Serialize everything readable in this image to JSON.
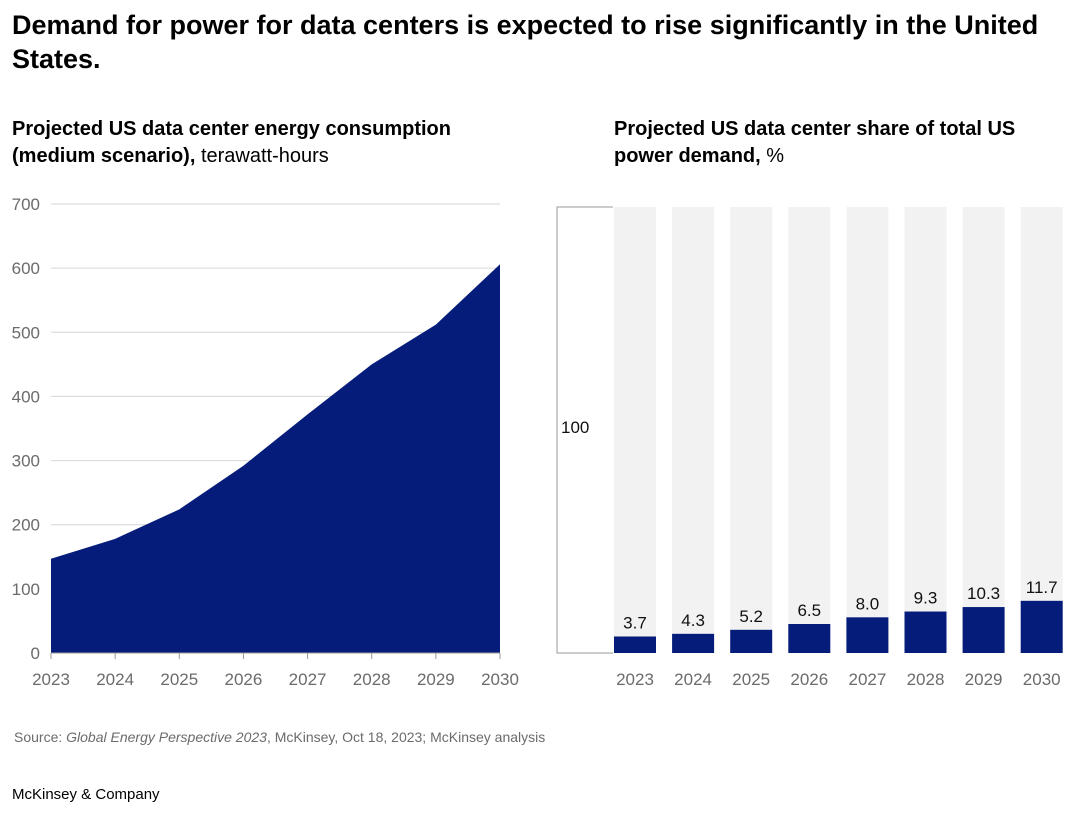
{
  "headline": "Demand for power for data centers is expected to rise significantly in the United States.",
  "chart_data": [
    {
      "type": "area",
      "title_bold": "Projected US data center energy consumption (medium scenario),",
      "title_unit": "terawatt-hours",
      "x": [
        "2023",
        "2024",
        "2025",
        "2026",
        "2027",
        "2028",
        "2029",
        "2030"
      ],
      "values": [
        147,
        178,
        224,
        292,
        372,
        450,
        512,
        606
      ],
      "ylim": [
        0,
        700
      ],
      "yticks": [
        0,
        100,
        200,
        300,
        400,
        500,
        600,
        700
      ],
      "grid": true,
      "color": "#051c7a"
    },
    {
      "type": "bar",
      "title_bold": "Projected US data center share of total US power demand,",
      "title_unit": "%",
      "categories": [
        "2023",
        "2024",
        "2025",
        "2026",
        "2027",
        "2028",
        "2029",
        "2030"
      ],
      "values": [
        3.7,
        4.3,
        5.2,
        6.5,
        8.0,
        9.3,
        10.3,
        11.7
      ],
      "value_labels": [
        "3.7",
        "4.3",
        "5.2",
        "6.5",
        "8.0",
        "9.3",
        "10.3",
        "11.7"
      ],
      "total": 100,
      "total_label": "100",
      "color": "#051c7a",
      "background_color": "#f2f2f2"
    }
  ],
  "source": {
    "prefix": "Source: ",
    "title": "Global Energy Perspective 2023",
    "rest": ", McKinsey, Oct 18, 2023; McKinsey analysis"
  },
  "brand": "McKinsey & Company"
}
